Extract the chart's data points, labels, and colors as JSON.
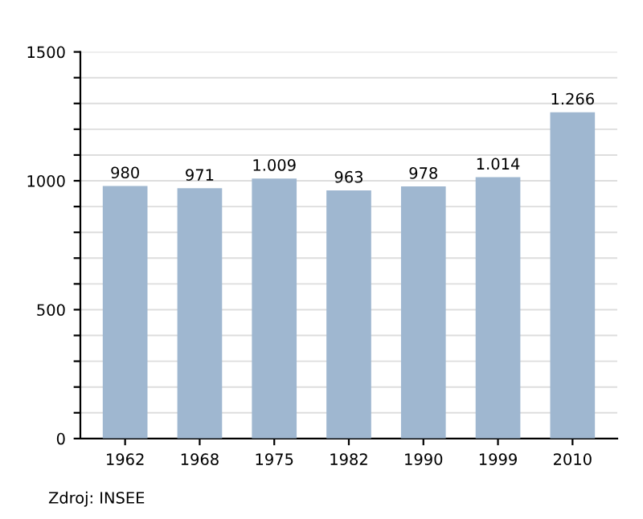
{
  "chart_data": {
    "type": "bar",
    "categories": [
      "1962",
      "1968",
      "1975",
      "1982",
      "1990",
      "1999",
      "2010"
    ],
    "values": [
      980,
      971,
      1009,
      963,
      978,
      1014,
      1266
    ],
    "value_labels": [
      "980",
      "971",
      "1.009",
      "963",
      "978",
      "1.014",
      "1.266"
    ],
    "color": "#9fb7d0",
    "ylim": [
      0,
      1500
    ],
    "yticks": [
      0,
      {
        "value": 100,
        "label": null
      },
      {
        "value": 200,
        "label": null
      },
      {
        "value": 300,
        "label": null
      },
      {
        "value": 400,
        "label": null
      },
      500,
      {
        "value": 600,
        "label": null
      },
      {
        "value": 700,
        "label": null
      },
      {
        "value": 800,
        "label": null
      },
      {
        "value": 900,
        "label": null
      },
      1000,
      {
        "value": 1100,
        "label": null
      },
      {
        "value": 1200,
        "label": null
      },
      {
        "value": 1300,
        "label": null
      },
      {
        "value": 1400,
        "label": null
      },
      1500
    ],
    "grid": "y",
    "annotations": [
      "Zdroj: INSEE"
    ]
  }
}
